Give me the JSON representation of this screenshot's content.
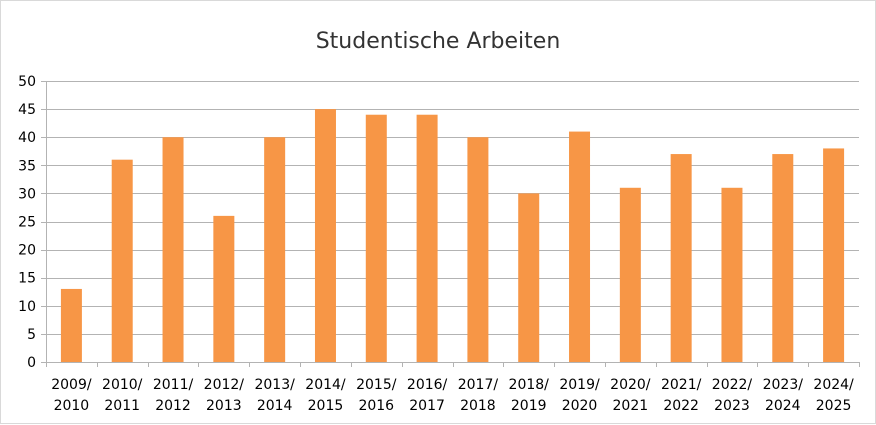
{
  "chart_data": {
    "type": "bar",
    "title": "Studentische Arbeiten",
    "xlabel": "",
    "ylabel": "",
    "categories": [
      [
        "2009/",
        "2010"
      ],
      [
        "2010/",
        "2011"
      ],
      [
        "2011/",
        "2012"
      ],
      [
        "2012/",
        "2013"
      ],
      [
        "2013/",
        "2014"
      ],
      [
        "2014/",
        "2015"
      ],
      [
        "2015/",
        "2016"
      ],
      [
        "2016/",
        "2017"
      ],
      [
        "2017/",
        "2018"
      ],
      [
        "2018/",
        "2019"
      ],
      [
        "2019/",
        "2020"
      ],
      [
        "2020/",
        "2021"
      ],
      [
        "2021/",
        "2022"
      ],
      [
        "2022/",
        "2023"
      ],
      [
        "2023/",
        "2024"
      ],
      [
        "2024/",
        "2025"
      ]
    ],
    "values": [
      13,
      36,
      40,
      26,
      40,
      45,
      44,
      44,
      40,
      30,
      41,
      31,
      37,
      31,
      37,
      38
    ],
    "ylim": [
      0,
      50
    ],
    "yticks": [
      0,
      5,
      10,
      15,
      20,
      25,
      30,
      35,
      40,
      45,
      50
    ],
    "grid": true,
    "legend": "none",
    "colors": {
      "bar": "#f79646",
      "grid": "#b3b3b3",
      "axis": "#b3b3b3",
      "text": "#000000",
      "title": "#333333"
    }
  }
}
